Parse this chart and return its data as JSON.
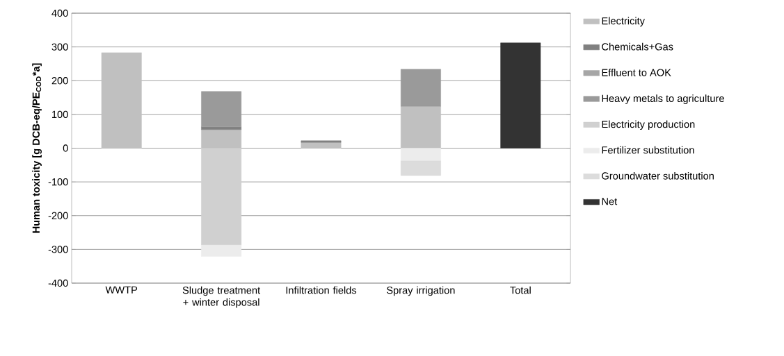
{
  "chart_data": {
    "type": "bar",
    "stacked": true,
    "ylabel": "Human toxicity [g DCB-eq/PE$_{COD}$*a]",
    "categories": [
      "WWTP",
      "Sludge treatment + winter disposal",
      "Infiltration fields",
      "Spray irrigation",
      "Total"
    ],
    "series": [
      {
        "name": "Electricity",
        "color": "#c0c0c0",
        "values": [
          283,
          55,
          17,
          124,
          null
        ]
      },
      {
        "name": "Chemicals+Gas",
        "color": "#808080",
        "values": [
          null,
          8,
          5,
          null,
          null
        ]
      },
      {
        "name": "Effluent to AOK",
        "color": "#a6a6a6",
        "values": [
          null,
          null,
          null,
          null,
          null
        ]
      },
      {
        "name": "Heavy metals to agriculture",
        "color": "#9a9a9a",
        "values": [
          null,
          105,
          null,
          110,
          null
        ]
      },
      {
        "name": "Electricity production",
        "color": "#d0d0d0",
        "values": [
          null,
          -287,
          null,
          null,
          null
        ]
      },
      {
        "name": "Fertilizer substitution",
        "color": "#ececec",
        "values": [
          null,
          -34,
          null,
          -38,
          null
        ]
      },
      {
        "name": "Groundwater substitution",
        "color": "#dcdcdc",
        "values": [
          null,
          null,
          null,
          -43,
          null
        ]
      },
      {
        "name": "Net",
        "color": "#333333",
        "values": [
          null,
          null,
          null,
          null,
          312
        ]
      }
    ],
    "ylim": [
      -400,
      400
    ],
    "yticks": [
      -400,
      -300,
      -200,
      -100,
      0,
      100,
      200,
      300,
      400
    ],
    "grid": "y",
    "legend": "right"
  }
}
